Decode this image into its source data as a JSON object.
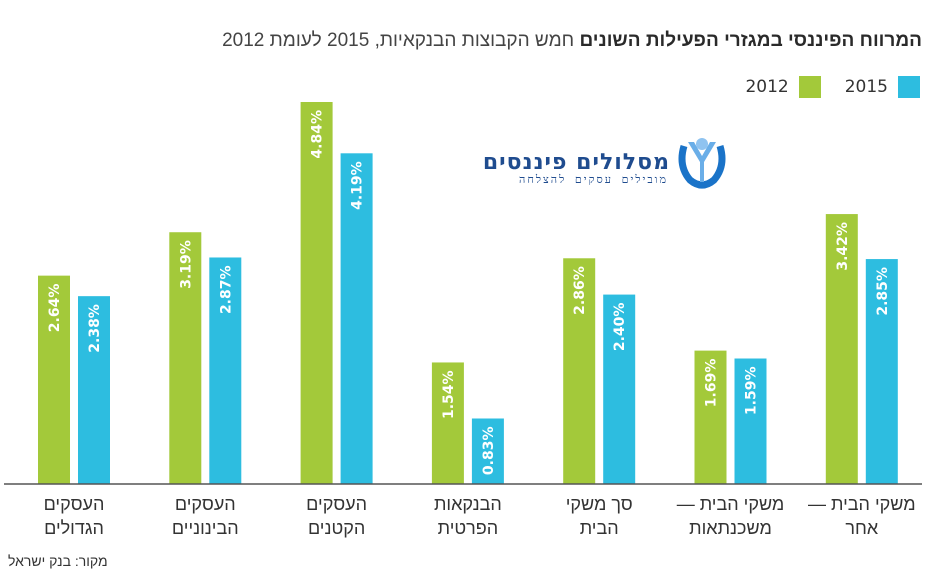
{
  "title": {
    "bold": "המרווח הפיננסי במגזרי הפעילות השונים",
    "regular": "חמש הקבוצות הבנקאיות, 2015 לעומת 2012"
  },
  "logo": {
    "name": "מסלולים פיננסים",
    "tagline": "מובילים עסקים להצלחה"
  },
  "source": "מקור: בנק ישראל",
  "colors": {
    "2012": "#a3c93a",
    "2015": "#2dbde0",
    "axis": "#555555"
  },
  "chart_data": {
    "type": "bar",
    "title": "המרווח הפיננסי במגזרי הפעילות השונים חמש הקבוצות הבנקאיות, 2015 לעומת 2012",
    "xlabel": "",
    "ylabel": "",
    "unit": "%",
    "ylim": [
      0,
      4.84
    ],
    "grid": false,
    "legend_position": "top-right",
    "categories": [
      [
        "העסקים",
        "הגדולים"
      ],
      [
        "העסקים",
        "הבינוניים"
      ],
      [
        "העסקים",
        "הקטנים"
      ],
      [
        "הבנקאות",
        "הפרטית"
      ],
      [
        "סך משקי",
        "הבית"
      ],
      [
        "משקי הבית —",
        "משכנתאות"
      ],
      [
        "משקי הבית —",
        "אחר"
      ]
    ],
    "series": [
      {
        "name": "2012",
        "color": "#a3c93a",
        "values": [
          2.64,
          3.19,
          4.84,
          1.54,
          2.86,
          1.69,
          3.42
        ],
        "labels": [
          "2.64%",
          "3.19%",
          "4.84%",
          "1.54%",
          "2.86%",
          "1.69%",
          "3.42%"
        ]
      },
      {
        "name": "2015",
        "color": "#2dbde0",
        "values": [
          2.38,
          2.87,
          4.19,
          0.83,
          2.4,
          1.59,
          2.85
        ],
        "labels": [
          "2.38%",
          "2.87%",
          "4.19%",
          "0.83%",
          "2.40%",
          "1.59%",
          "2.85%"
        ]
      }
    ]
  }
}
